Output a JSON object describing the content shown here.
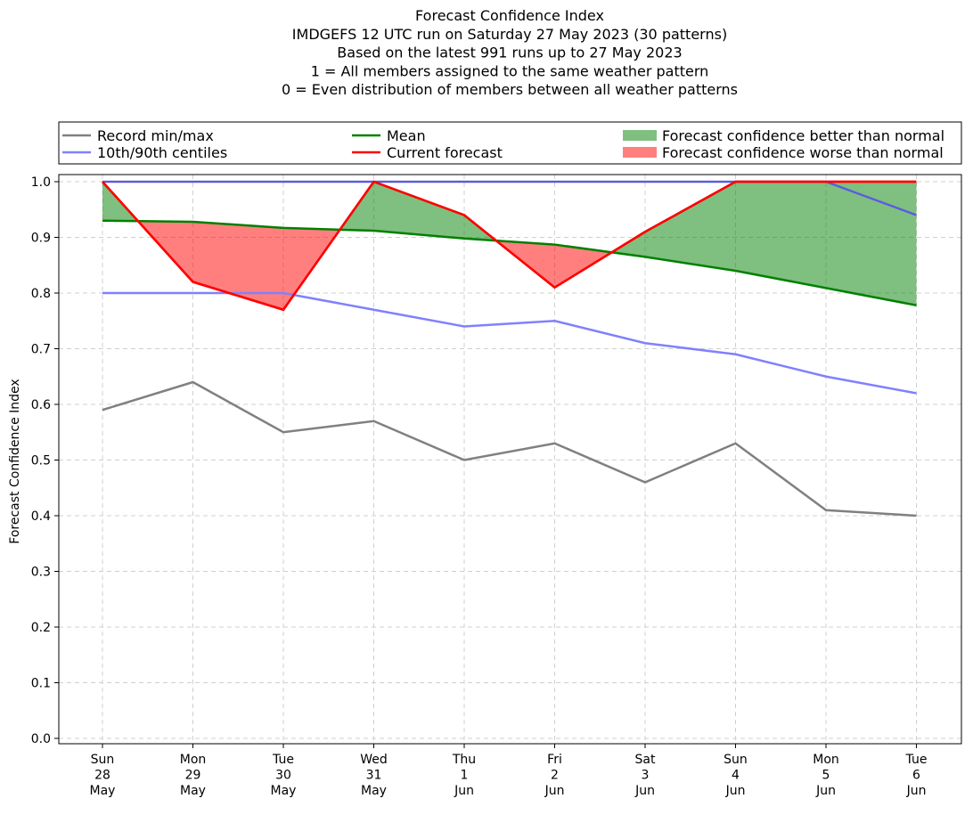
{
  "chart_data": {
    "type": "line",
    "title": [
      "Forecast Confidence Index",
      "IMDGEFS 12 UTC run on Saturday 27 May 2023 (30 patterns)",
      "Based on the latest 991 runs up to 27 May 2023",
      "1 = All members assigned to the same weather pattern",
      "0 = Even distribution of members between all weather patterns"
    ],
    "xlabel": "",
    "ylabel": "Forecast Confidence Index",
    "ylim": [
      0,
      1
    ],
    "yticks": [
      "0.0",
      "0.1",
      "0.2",
      "0.3",
      "0.4",
      "0.5",
      "0.6",
      "0.7",
      "0.8",
      "0.9",
      "1.0"
    ],
    "grid": true,
    "legend_placement": "top",
    "categories": [
      [
        "Sun",
        "28",
        "May"
      ],
      [
        "Mon",
        "29",
        "May"
      ],
      [
        "Tue",
        "30",
        "May"
      ],
      [
        "Wed",
        "31",
        "May"
      ],
      [
        "Thu",
        "1",
        "Jun"
      ],
      [
        "Fri",
        "2",
        "Jun"
      ],
      [
        "Sat",
        "3",
        "Jun"
      ],
      [
        "Sun",
        "4",
        "Jun"
      ],
      [
        "Mon",
        "5",
        "Jun"
      ],
      [
        "Tue",
        "6",
        "Jun"
      ]
    ],
    "series": [
      {
        "name": "Record min/max",
        "color": "#808080",
        "values": [
          0.59,
          0.64,
          0.55,
          0.57,
          0.5,
          0.53,
          0.46,
          0.53,
          0.41,
          0.4
        ],
        "values_max": [
          1.0,
          1.0,
          1.0,
          1.0,
          1.0,
          1.0,
          1.0,
          1.0,
          1.0,
          1.0
        ]
      },
      {
        "name": "10th/90th centiles",
        "color": "#8080ff",
        "values": [
          0.8,
          0.8,
          0.8,
          0.77,
          0.74,
          0.75,
          0.71,
          0.69,
          0.65,
          0.62
        ],
        "values_max": [
          1.0,
          1.0,
          1.0,
          1.0,
          1.0,
          1.0,
          1.0,
          1.0,
          1.0,
          0.94
        ]
      },
      {
        "name": "Mean",
        "color": "#008000",
        "values": [
          0.93,
          0.928,
          0.917,
          0.912,
          0.898,
          0.887,
          0.865,
          0.84,
          0.809,
          0.778
        ]
      },
      {
        "name": "Current forecast",
        "color": "#ff0000",
        "values": [
          1.0,
          0.82,
          0.77,
          1.0,
          0.94,
          0.81,
          0.91,
          1.0,
          1.0,
          1.0
        ]
      }
    ],
    "fills": [
      {
        "name": "Forecast confidence better than normal",
        "color": "#008000",
        "opacity": 0.5
      },
      {
        "name": "Forecast confidence worse than normal",
        "color": "#ff0000",
        "opacity": 0.5
      }
    ]
  }
}
